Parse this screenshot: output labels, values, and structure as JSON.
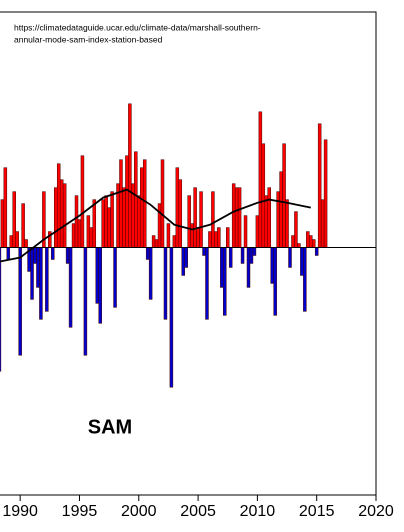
{
  "chart_data": {
    "type": "bar",
    "source": [
      "https://climatedataguide.ucar.edu/climate-data/marshall-southern-",
      "annular-mode-sam-index-station-based"
    ],
    "annotation": "SAM",
    "positive_color": "#ff0000",
    "negative_color": "#0000cc",
    "line_color": "#000000",
    "xlim": [
      1988.3,
      2020
    ],
    "ylim": [
      -6.2,
      5.9
    ],
    "xticks": [
      1990,
      1995,
      2000,
      2005,
      2010,
      2015,
      2020
    ],
    "x": [
      1988.25,
      1988.5,
      1988.75,
      1989.0,
      1989.25,
      1989.5,
      1989.75,
      1990.0,
      1990.25,
      1990.5,
      1990.75,
      1991.0,
      1991.25,
      1991.5,
      1991.75,
      1992.0,
      1992.25,
      1992.5,
      1992.75,
      1993.0,
      1993.25,
      1993.5,
      1993.75,
      1994.0,
      1994.25,
      1994.5,
      1994.75,
      1995.0,
      1995.25,
      1995.5,
      1995.75,
      1996.0,
      1996.25,
      1996.5,
      1996.75,
      1997.0,
      1997.25,
      1997.5,
      1997.75,
      1998.0,
      1998.25,
      1998.5,
      1998.75,
      1999.0,
      1999.25,
      1999.5,
      1999.75,
      2000.0,
      2000.25,
      2000.5,
      2000.75,
      2001.0,
      2001.25,
      2001.5,
      2001.75,
      2002.0,
      2002.25,
      2002.5,
      2002.75,
      2003.0,
      2003.25,
      2003.5,
      2003.75,
      2004.0,
      2004.25,
      2004.5,
      2004.75,
      2005.0,
      2005.25,
      2005.5,
      2005.75,
      2006.0,
      2006.25,
      2006.5,
      2006.75,
      2007.0,
      2007.25,
      2007.5,
      2007.75,
      2008.0,
      2008.25,
      2008.5,
      2008.75,
      2009.0,
      2009.25,
      2009.5,
      2009.75,
      2010.0,
      2010.25,
      2010.5,
      2010.75,
      2011.0,
      2011.25,
      2011.5,
      2011.75,
      2012.0,
      2012.25,
      2012.5,
      2012.75,
      2013.0,
      2013.25,
      2013.5,
      2013.75,
      2014.0,
      2014.25,
      2014.5,
      2014.75,
      2015.0,
      2015.25,
      2015.5,
      2015.75
    ],
    "values": [
      -3.1,
      1.2,
      2.0,
      -0.3,
      0.3,
      1.4,
      0.4,
      -2.7,
      1.1,
      0.2,
      -0.6,
      -1.3,
      -0.4,
      -1.0,
      -1.8,
      1.4,
      -1.6,
      0.4,
      -0.3,
      1.5,
      2.1,
      1.7,
      1.6,
      -0.4,
      -2.0,
      0.6,
      1.3,
      0.7,
      2.3,
      -2.7,
      0.8,
      0.5,
      1.2,
      -1.4,
      -1.9,
      1.2,
      1.3,
      1.0,
      1.4,
      -1.5,
      1.6,
      2.2,
      1.5,
      2.3,
      3.6,
      1.6,
      2.4,
      1.3,
      2.0,
      2.2,
      -0.3,
      -1.3,
      0.3,
      0.2,
      1.1,
      2.2,
      -1.8,
      0.6,
      -3.5,
      0.3,
      2.0,
      1.7,
      -0.7,
      -0.5,
      1.3,
      0.6,
      1.5,
      0.5,
      1.4,
      -0.2,
      -1.8,
      0.4,
      1.4,
      0.4,
      0.5,
      -1.0,
      -1.7,
      0.5,
      -0.5,
      1.6,
      1.5,
      1.5,
      -0.4,
      0.8,
      -1.0,
      -0.4,
      -0.2,
      0.8,
      3.4,
      2.6,
      1.3,
      1.5,
      -0.9,
      -1.7,
      1.4,
      1.9,
      2.6,
      1.2,
      -0.5,
      0.3,
      0.9,
      0.1,
      -0.7,
      -1.6,
      0.4,
      0.3,
      0.2,
      -0.2,
      3.1,
      1.2,
      2.7
    ],
    "smooth": {
      "x": [
        1988.3,
        1990,
        1992,
        1995,
        1997,
        1999,
        2001,
        2003,
        2004.5,
        2006,
        2008,
        2010,
        2011,
        2012.5,
        2014.5
      ],
      "values": [
        -0.35,
        -0.25,
        0.2,
        0.8,
        1.25,
        1.45,
        1.07,
        0.57,
        0.45,
        0.57,
        0.9,
        1.12,
        1.2,
        1.12,
        1.0
      ]
    }
  }
}
